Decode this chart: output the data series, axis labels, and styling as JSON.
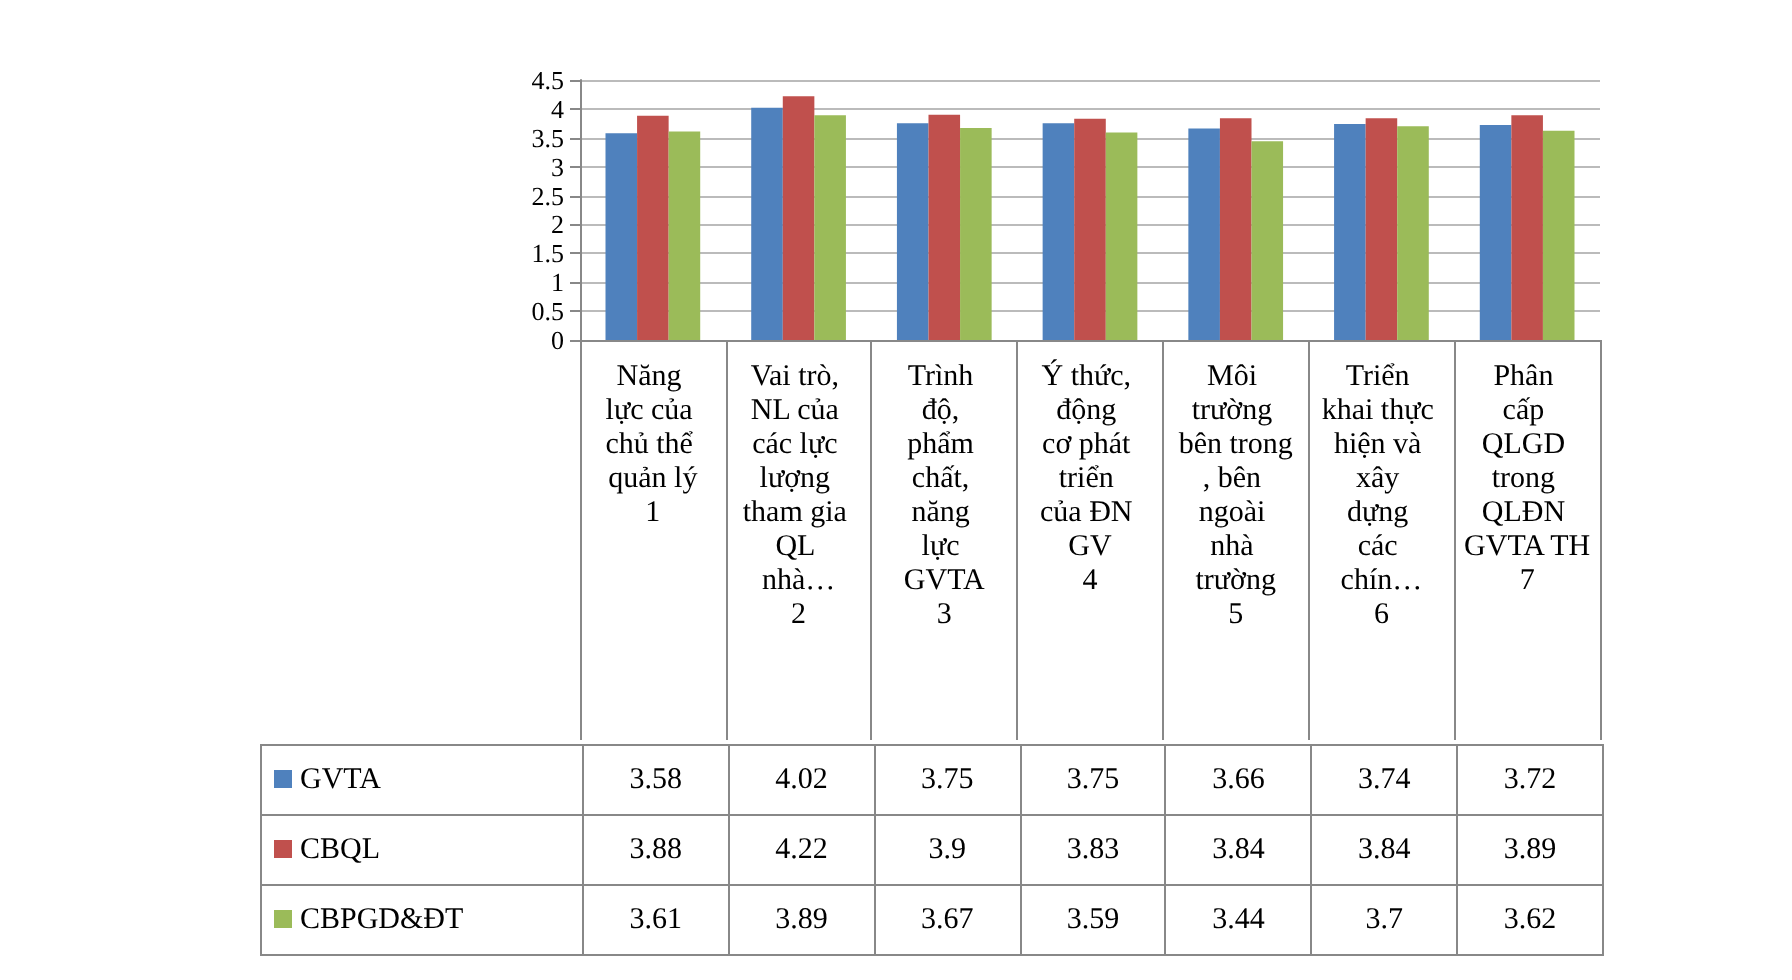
{
  "chart_data": {
    "type": "bar",
    "categories": [
      "Năng lực của chủ thể quản lý\n1",
      "Vai trò, NL của các lực lượng tham gia QL nhà…\n2",
      "Trình độ, phẩm chất, năng lực GVTA\n3",
      "Ý thức, động cơ phát triển của ĐN GV\n4",
      "Môi trường bên trong, bên ngoài nhà trường\n5",
      "Triển khai thực hiện và xây dựng các chín…\n6",
      "Phân cấp QLGD trong QLĐN GVTA TH\n7"
    ],
    "series": [
      {
        "name": "GVTA",
        "color": "#4f81bd",
        "values": [
          3.58,
          4.02,
          3.75,
          3.75,
          3.66,
          3.74,
          3.72
        ]
      },
      {
        "name": "CBQL",
        "color": "#c0504d",
        "values": [
          3.88,
          4.22,
          3.9,
          3.83,
          3.84,
          3.84,
          3.89
        ]
      },
      {
        "name": "CBPGD&ĐT",
        "color": "#9bbb59",
        "values": [
          3.61,
          3.89,
          3.67,
          3.59,
          3.44,
          3.7,
          3.62
        ]
      }
    ],
    "ylim": [
      0,
      4.5
    ],
    "yticks": [
      0,
      0.5,
      1,
      1.5,
      2,
      2.5,
      3,
      3.5,
      4,
      4.5
    ],
    "grid": "y",
    "legend": "bottom left",
    "data_labels": true
  }
}
